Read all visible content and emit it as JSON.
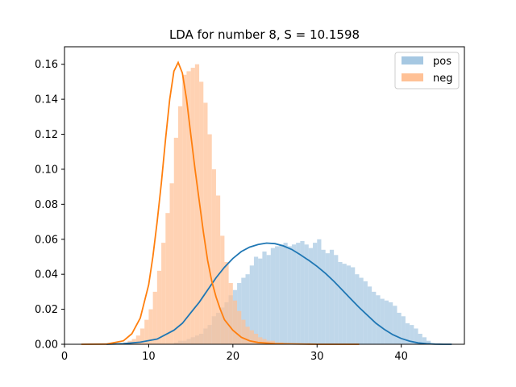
{
  "chart_data": {
    "type": "bar",
    "title": "LDA for number 8, S = 10.1598",
    "xlabel": "",
    "ylabel": "",
    "xlim": [
      0,
      47.5
    ],
    "ylim": [
      0,
      0.17
    ],
    "xticks": [
      0,
      10,
      20,
      30,
      40
    ],
    "yticks": [
      0.0,
      0.02,
      0.04,
      0.06,
      0.08,
      0.1,
      0.12,
      0.14,
      0.16
    ],
    "xtick_labels": [
      "0",
      "10",
      "20",
      "30",
      "40"
    ],
    "ytick_labels": [
      "0.00",
      "0.02",
      "0.04",
      "0.06",
      "0.08",
      "0.10",
      "0.12",
      "0.14",
      "0.16"
    ],
    "legend_position": "top-right",
    "grid": false,
    "series": [
      {
        "name": "pos",
        "color": "#1f77b4",
        "bar_color": "#a6c8e2",
        "hist_edges_start": 13,
        "hist_bin_width": 0.5,
        "hist_values": [
          0.001,
          0.002,
          0.002,
          0.003,
          0.004,
          0.005,
          0.006,
          0.009,
          0.011,
          0.016,
          0.018,
          0.021,
          0.024,
          0.028,
          0.031,
          0.035,
          0.038,
          0.04,
          0.045,
          0.05,
          0.049,
          0.053,
          0.051,
          0.055,
          0.056,
          0.057,
          0.058,
          0.056,
          0.057,
          0.058,
          0.059,
          0.057,
          0.055,
          0.058,
          0.06,
          0.054,
          0.052,
          0.054,
          0.051,
          0.047,
          0.046,
          0.045,
          0.044,
          0.04,
          0.038,
          0.036,
          0.033,
          0.03,
          0.028,
          0.026,
          0.025,
          0.024,
          0.022,
          0.018,
          0.016,
          0.012,
          0.011,
          0.009,
          0.006,
          0.004,
          0.002
        ],
        "kde_x": [
          5,
          7,
          9,
          11,
          13,
          14,
          15,
          16,
          17,
          18,
          19,
          20,
          21,
          22,
          23,
          24,
          25,
          26,
          27,
          28,
          29,
          30,
          31,
          32,
          33,
          34,
          35,
          36,
          37,
          38,
          39,
          40,
          41,
          42,
          43,
          44,
          45,
          46
        ],
        "kde_y": [
          0,
          0.0003,
          0.0012,
          0.003,
          0.008,
          0.012,
          0.018,
          0.024,
          0.031,
          0.038,
          0.044,
          0.049,
          0.053,
          0.0555,
          0.057,
          0.0578,
          0.0575,
          0.0562,
          0.0542,
          0.0512,
          0.048,
          0.0445,
          0.0405,
          0.036,
          0.031,
          0.026,
          0.021,
          0.0165,
          0.012,
          0.0085,
          0.0055,
          0.0033,
          0.0018,
          0.0008,
          0.0003,
          0.0001,
          0,
          0
        ]
      },
      {
        "name": "neg",
        "color": "#ff7f0e",
        "bar_color": "#ffc196",
        "hist_edges_start": 7,
        "hist_bin_width": 0.5,
        "hist_values": [
          0.001,
          0.002,
          0.003,
          0.005,
          0.009,
          0.014,
          0.02,
          0.03,
          0.042,
          0.058,
          0.075,
          0.092,
          0.118,
          0.136,
          0.154,
          0.156,
          0.158,
          0.16,
          0.15,
          0.138,
          0.12,
          0.1,
          0.085,
          0.062,
          0.047,
          0.035,
          0.025,
          0.019,
          0.014,
          0.01,
          0.008,
          0.006,
          0.004,
          0.003,
          0.002,
          0.002,
          0.001,
          0.001
        ],
        "kde_x": [
          2,
          5,
          7,
          8,
          9,
          10,
          10.5,
          11,
          11.5,
          12,
          12.5,
          13,
          13.5,
          14,
          14.5,
          15,
          15.5,
          16,
          16.5,
          17,
          17.5,
          18,
          18.5,
          19,
          20,
          21,
          22,
          23,
          25,
          30,
          35
        ],
        "kde_y": [
          0,
          0.0001,
          0.002,
          0.006,
          0.015,
          0.034,
          0.05,
          0.07,
          0.092,
          0.117,
          0.14,
          0.156,
          0.161,
          0.155,
          0.14,
          0.12,
          0.1,
          0.082,
          0.064,
          0.048,
          0.036,
          0.027,
          0.02,
          0.014,
          0.008,
          0.004,
          0.002,
          0.001,
          0.0003,
          0,
          0
        ]
      }
    ]
  }
}
